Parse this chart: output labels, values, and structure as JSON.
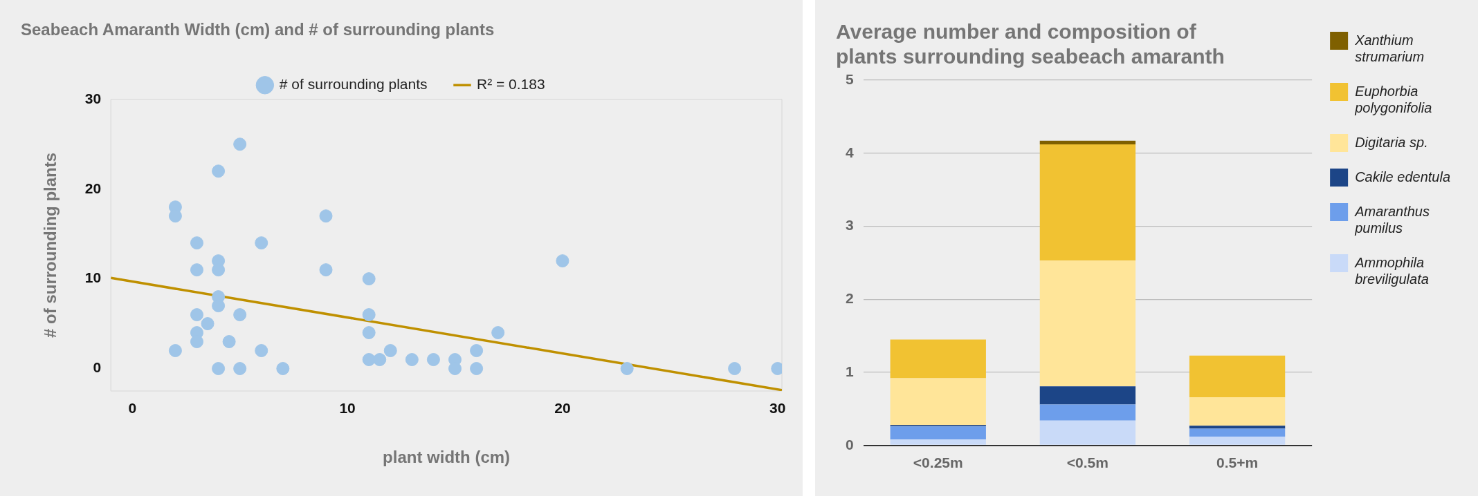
{
  "chart_data": [
    {
      "type": "scatter",
      "title": "Seabeach Amaranth Width (cm) and # of surrounding plants",
      "xlabel": "plant width (cm)",
      "ylabel": "# of surrounding plants",
      "xlim": [
        -1,
        30.2
      ],
      "xticks": [
        0,
        10,
        20,
        30
      ],
      "ylim": [
        -2.5,
        30
      ],
      "yticks": [
        0,
        10,
        20,
        30
      ],
      "grid": false,
      "legend": "top",
      "marker": "circle",
      "series": [
        {
          "name": "# of surrounding plants",
          "color": "#9fc5e8",
          "x": [
            5,
            4,
            2,
            2,
            9,
            3,
            6,
            4,
            4,
            3,
            9,
            11,
            4,
            4,
            3,
            5,
            11,
            3.5,
            3,
            3,
            11,
            4.5,
            2,
            6,
            12,
            11,
            11.5,
            13,
            14,
            15,
            15,
            4,
            5,
            7,
            20,
            17,
            16,
            16,
            23,
            28,
            30
          ],
          "values": [
            25,
            22,
            18,
            17,
            17,
            14,
            14,
            12,
            11,
            11,
            11,
            10,
            8,
            7,
            6,
            6,
            6,
            5,
            4,
            3,
            4,
            3,
            2,
            2,
            2,
            1,
            1,
            1,
            1,
            1,
            0,
            0,
            0,
            0,
            12,
            4,
            2,
            0,
            0,
            0,
            0
          ]
        },
        {
          "name": "R² = 0.183",
          "type": "line",
          "marker": "none",
          "color": "#bf9000",
          "x": [
            -1,
            30.2
          ],
          "values": [
            10.1,
            -2.4
          ]
        }
      ]
    },
    {
      "type": "bar",
      "title": "Average number and composition of plants surrounding seabeach amaranth",
      "categories": [
        "<0.25m",
        "<0.5m",
        "0.5+m"
      ],
      "stacked": true,
      "ylim": [
        0,
        5
      ],
      "yticks": [
        0,
        1,
        2,
        3,
        4,
        5
      ],
      "grid": "y",
      "legend": "right",
      "series": [
        {
          "name": "Ammophila breviligulata",
          "color": "#c9daf8",
          "values": [
            0.08,
            0.34,
            0.12
          ]
        },
        {
          "name": "Amaranthus pumilus",
          "color": "#6d9eeb",
          "values": [
            0.18,
            0.22,
            0.11
          ]
        },
        {
          "name": "Cakile edentula",
          "color": "#1c4587",
          "values": [
            0.02,
            0.25,
            0.04
          ]
        },
        {
          "name": "Digitaria sp.",
          "color": "#ffe599",
          "values": [
            0.64,
            1.72,
            0.39
          ]
        },
        {
          "name": "Euphorbia polygonifolia",
          "color": "#f1c232",
          "values": [
            0.53,
            1.59,
            0.57
          ]
        },
        {
          "name": "Xanthium strumarium",
          "color": "#7f6000",
          "values": [
            0,
            0.05,
            0
          ]
        }
      ]
    }
  ]
}
